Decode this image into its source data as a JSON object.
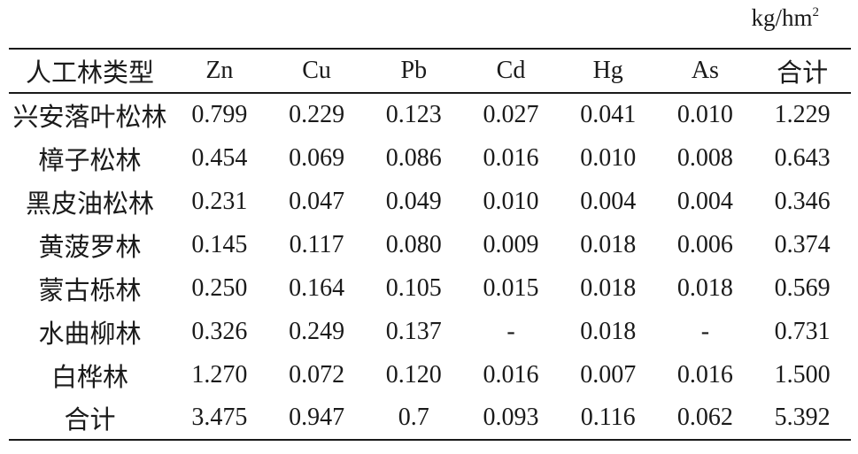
{
  "unit": {
    "text": "kg/hm",
    "sup": "2"
  },
  "table": {
    "headers": [
      "人工林类型",
      "Zn",
      "Cu",
      "Pb",
      "Cd",
      "Hg",
      "As",
      "合计"
    ],
    "rows": [
      [
        "兴安落叶松林",
        "0.799",
        "0.229",
        "0.123",
        "0.027",
        "0.041",
        "0.010",
        "1.229"
      ],
      [
        "樟子松林",
        "0.454",
        "0.069",
        "0.086",
        "0.016",
        "0.010",
        "0.008",
        "0.643"
      ],
      [
        "黑皮油松林",
        "0.231",
        "0.047",
        "0.049",
        "0.010",
        "0.004",
        "0.004",
        "0.346"
      ],
      [
        "黄菠罗林",
        "0.145",
        "0.117",
        "0.080",
        "0.009",
        "0.018",
        "0.006",
        "0.374"
      ],
      [
        "蒙古栎林",
        "0.250",
        "0.164",
        "0.105",
        "0.015",
        "0.018",
        "0.018",
        "0.569"
      ],
      [
        "水曲柳林",
        "0.326",
        "0.249",
        "0.137",
        "-",
        "0.018",
        "-",
        "0.731"
      ],
      [
        "白桦林",
        "1.270",
        "0.072",
        "0.120",
        "0.016",
        "0.007",
        "0.016",
        "1.500"
      ],
      [
        "合计",
        "3.475",
        "0.947",
        "0.7",
        "0.093",
        "0.116",
        "0.062",
        "5.392"
      ]
    ]
  }
}
